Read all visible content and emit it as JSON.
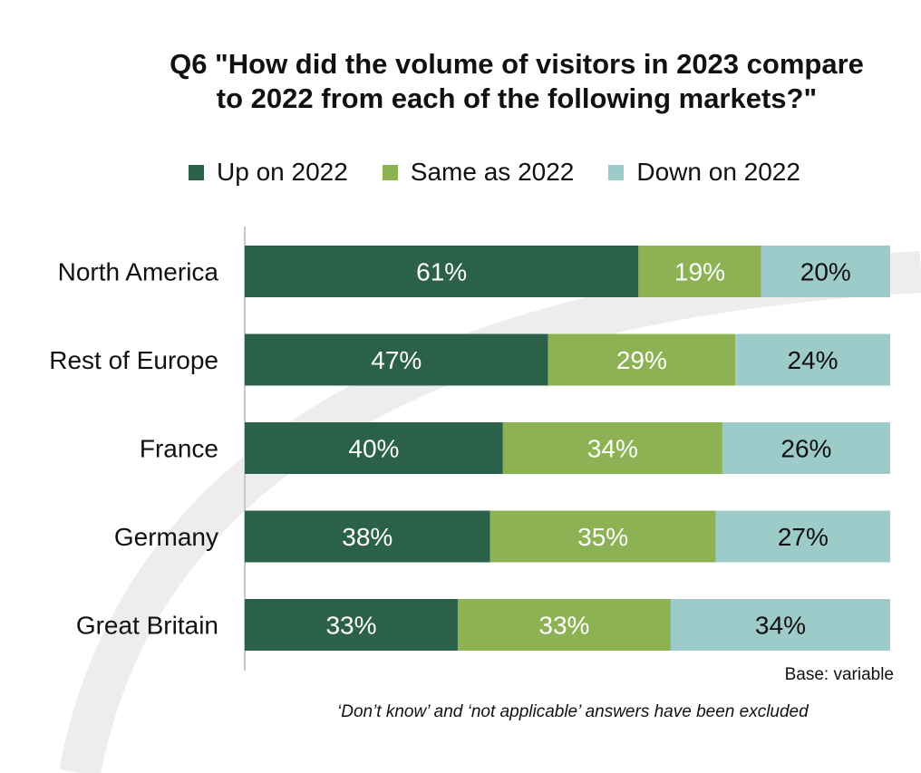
{
  "chart_data": {
    "type": "bar",
    "orientation": "horizontal",
    "stacked": true,
    "title": "Q6 \"How did the volume of visitors in 2023 compare to 2022 from each of the following markets?\"",
    "title_lines": [
      "Q6 \"How did the volume of visitors in 2023 compare",
      "to 2022 from each of the following markets?\""
    ],
    "categories": [
      "North America",
      "Rest of Europe",
      "France",
      "Germany",
      "Great Britain"
    ],
    "series": [
      {
        "name": "Up on 2022",
        "color": "#2b6148",
        "label_color": "#ffffff",
        "values": [
          61,
          47,
          40,
          38,
          33
        ]
      },
      {
        "name": "Same as 2022",
        "color": "#8cb254",
        "label_color": "#ffffff",
        "values": [
          19,
          29,
          34,
          35,
          33
        ]
      },
      {
        "name": "Down on 2022",
        "color": "#9ccbc9",
        "label_color": "#111111",
        "values": [
          20,
          24,
          26,
          27,
          34
        ]
      }
    ],
    "value_suffix": "%",
    "xlim": [
      0,
      100
    ],
    "legend_position": "top",
    "grid": false
  },
  "notes": {
    "base": "Base: variable",
    "footnote": "‘Don’t know’ and ‘not applicable’ answers have been excluded"
  }
}
